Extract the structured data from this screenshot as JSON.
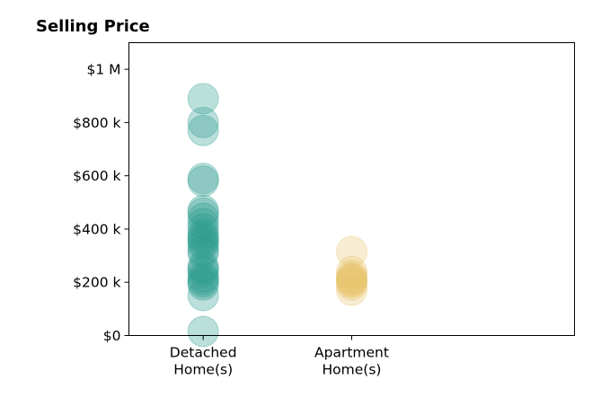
{
  "chart_data": {
    "type": "scatter",
    "title": "Selling Price",
    "xlabel": "",
    "ylabel": "",
    "categories": [
      "Detached\nHome(s)",
      "Apartment\nHome(s)"
    ],
    "xlim": [
      -0.5,
      2.5
    ],
    "ylim": [
      0,
      1100000
    ],
    "yticks": [
      {
        "value": 0,
        "label": "$0"
      },
      {
        "value": 200000,
        "label": "$200 k"
      },
      {
        "value": 400000,
        "label": "$400 k"
      },
      {
        "value": 600000,
        "label": "$600 k"
      },
      {
        "value": 800000,
        "label": "$800 k"
      },
      {
        "value": 1000000,
        "label": "$1 M"
      }
    ],
    "grid": false,
    "series": [
      {
        "category_index": 0,
        "color": "#2a9d8f",
        "values": [
          890000,
          800000,
          770000,
          590000,
          580000,
          470000,
          460000,
          440000,
          420000,
          400000,
          380000,
          370000,
          360000,
          350000,
          340000,
          320000,
          310000,
          260000,
          250000,
          240000,
          220000,
          210000,
          200000,
          190000,
          150000,
          15000
        ]
      },
      {
        "category_index": 1,
        "color": "#e9c46a",
        "values": [
          315000,
          240000,
          225000,
          215000,
          210000,
          205000,
          200000,
          190000,
          170000
        ]
      }
    ]
  }
}
